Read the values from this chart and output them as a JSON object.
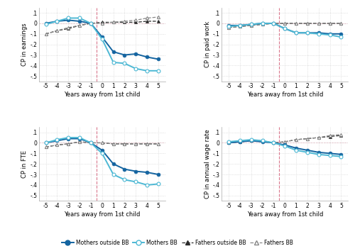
{
  "x": [
    -5,
    -4,
    -3,
    -2,
    -1,
    0,
    1,
    2,
    3,
    4,
    5
  ],
  "panels": [
    {
      "ylabel": "CP in earnings",
      "ylim": [
        -0.55,
        0.15
      ],
      "yticks": [
        0.1,
        0.0,
        -0.1,
        -0.2,
        -0.3,
        -0.4,
        -0.5
      ],
      "ytick_labels": [
        ".1",
        "0",
        "-.1",
        "-.2",
        "-.3",
        "-.4",
        "-.5"
      ],
      "mothers_outside": [
        0.0,
        0.02,
        0.03,
        0.02,
        0.0,
        -0.13,
        -0.27,
        -0.3,
        -0.29,
        -0.32,
        -0.34
      ],
      "mothers_bb": [
        -0.01,
        0.02,
        0.05,
        0.05,
        0.0,
        -0.15,
        -0.37,
        -0.38,
        -0.43,
        -0.45,
        -0.45
      ],
      "fathers_outside": [
        -0.1,
        -0.07,
        -0.05,
        -0.02,
        0.0,
        0.01,
        0.01,
        0.01,
        0.01,
        0.02,
        0.02
      ],
      "fathers_bb": [
        -0.1,
        -0.07,
        -0.04,
        -0.02,
        0.0,
        0.0,
        0.01,
        0.02,
        0.03,
        0.05,
        0.06
      ]
    },
    {
      "ylabel": "CP in paid work",
      "ylim": [
        -0.55,
        0.15
      ],
      "yticks": [
        0.1,
        0.0,
        -0.1,
        -0.2,
        -0.3,
        -0.4,
        -0.5
      ],
      "ytick_labels": [
        ".1",
        "0",
        "-.1",
        "-.2",
        "-.3",
        "-.4",
        "-.5"
      ],
      "mothers_outside": [
        -0.02,
        -0.02,
        -0.01,
        0.0,
        0.0,
        -0.05,
        -0.09,
        -0.09,
        -0.09,
        -0.1,
        -0.1
      ],
      "mothers_bb": [
        -0.03,
        -0.02,
        -0.01,
        0.0,
        0.0,
        -0.05,
        -0.09,
        -0.09,
        -0.1,
        -0.11,
        -0.13
      ],
      "fathers_outside": [
        -0.04,
        -0.03,
        -0.02,
        -0.01,
        0.0,
        0.0,
        0.0,
        0.0,
        0.0,
        0.0,
        0.0
      ],
      "fathers_bb": [
        -0.04,
        -0.03,
        -0.02,
        -0.01,
        0.0,
        0.0,
        0.0,
        0.0,
        0.0,
        0.0,
        0.0
      ]
    },
    {
      "ylabel": "CP in FTE",
      "ylim": [
        -0.55,
        0.15
      ],
      "yticks": [
        0.1,
        0.0,
        -0.1,
        -0.2,
        -0.3,
        -0.4,
        -0.5
      ],
      "ytick_labels": [
        ".1",
        "0",
        "-.1",
        "-.2",
        "-.3",
        "-.4",
        "-.5"
      ],
      "mothers_outside": [
        0.0,
        0.02,
        0.04,
        0.04,
        0.0,
        -0.07,
        -0.2,
        -0.25,
        -0.27,
        -0.28,
        -0.3
      ],
      "mothers_bb": [
        0.0,
        0.03,
        0.05,
        0.05,
        0.0,
        -0.1,
        -0.3,
        -0.35,
        -0.37,
        -0.4,
        -0.39
      ],
      "fathers_outside": [
        -0.04,
        -0.02,
        -0.01,
        0.01,
        0.0,
        0.0,
        -0.01,
        -0.01,
        -0.01,
        -0.01,
        -0.01
      ],
      "fathers_bb": [
        -0.04,
        -0.02,
        -0.01,
        0.01,
        0.0,
        0.0,
        -0.01,
        -0.01,
        -0.01,
        -0.01,
        -0.01
      ]
    },
    {
      "ylabel": "CP in annual wage rate",
      "ylim": [
        -0.55,
        0.15
      ],
      "yticks": [
        0.1,
        0.0,
        -0.1,
        -0.2,
        -0.3,
        -0.4,
        -0.5
      ],
      "ytick_labels": [
        ".1",
        "0",
        "-.1",
        "-.2",
        "-.3",
        "-.4",
        "-.5"
      ],
      "mothers_outside": [
        0.0,
        0.01,
        0.02,
        0.01,
        0.0,
        -0.02,
        -0.05,
        -0.07,
        -0.09,
        -0.1,
        -0.11
      ],
      "mothers_bb": [
        0.01,
        0.02,
        0.03,
        0.02,
        0.0,
        -0.03,
        -0.07,
        -0.09,
        -0.11,
        -0.12,
        -0.13
      ],
      "fathers_outside": [
        0.0,
        0.01,
        0.02,
        0.02,
        0.0,
        0.01,
        0.03,
        0.04,
        0.05,
        0.06,
        0.07
      ],
      "fathers_bb": [
        0.0,
        0.01,
        0.02,
        0.02,
        0.0,
        0.01,
        0.03,
        0.04,
        0.05,
        0.07,
        0.08
      ]
    }
  ],
  "color_mothers_outside": "#1464a0",
  "color_mothers_bb": "#4db8d4",
  "color_fathers_outside": "#2a2a2a",
  "color_fathers_bb": "#888888",
  "vline_color": "#d4607a",
  "xlabel": "Years away from 1st child",
  "legend_labels": [
    "Mothers outside BB",
    "Mothers BB",
    "Fathers outside BB",
    "Fathers BB"
  ]
}
